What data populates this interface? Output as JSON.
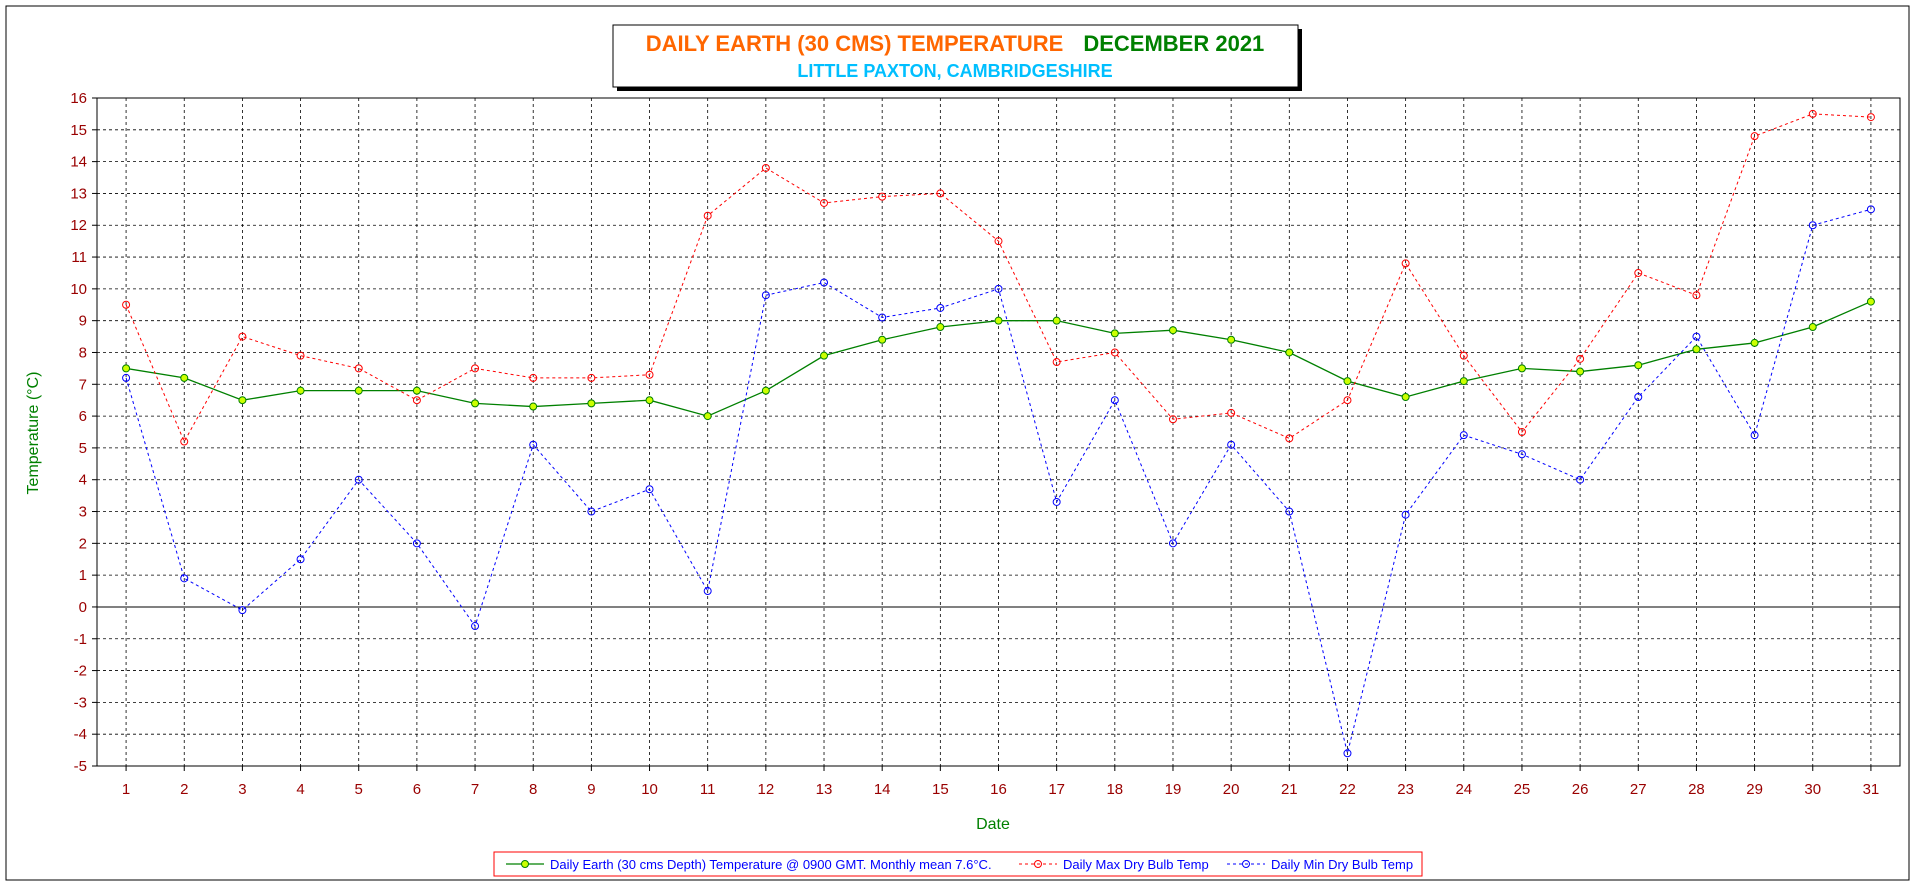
{
  "chart_data": {
    "type": "line",
    "title_part1": "DAILY EARTH (30 CMS) TEMPERATURE",
    "title_part2": "DECEMBER 2021",
    "subtitle": "LITTLE PAXTON, CAMBRIDGESHIRE",
    "xlabel": "Date",
    "ylabel": "Temperature (°C)",
    "ylim": [
      -5,
      16
    ],
    "grid": true,
    "legend_position": "bottom",
    "x": [
      1,
      2,
      3,
      4,
      5,
      6,
      7,
      8,
      9,
      10,
      11,
      12,
      13,
      14,
      15,
      16,
      17,
      18,
      19,
      20,
      21,
      22,
      23,
      24,
      25,
      26,
      27,
      28,
      29,
      30,
      31
    ],
    "series": [
      {
        "name": "Daily Earth (30 cms Depth) Temperature @ 0900 GMT. Monthly mean 7.6°C.",
        "color": "#008000",
        "marker_fill": "#ccff00",
        "style": "solid",
        "values": [
          7.5,
          7.2,
          6.5,
          6.8,
          6.8,
          6.8,
          6.4,
          6.3,
          6.4,
          6.5,
          6.0,
          6.8,
          7.9,
          8.4,
          8.8,
          9.0,
          9.0,
          8.6,
          8.7,
          8.4,
          8.0,
          7.1,
          6.6,
          7.1,
          7.5,
          7.4,
          7.6,
          8.1,
          8.3,
          8.8,
          9.6
        ]
      },
      {
        "name": "Daily Max Dry Bulb Temp",
        "color": "#ff0000",
        "marker_fill": "none",
        "style": "dashed",
        "values": [
          9.5,
          5.2,
          8.5,
          7.9,
          7.5,
          6.5,
          7.5,
          7.2,
          7.2,
          7.3,
          12.3,
          13.8,
          12.7,
          12.9,
          13.0,
          11.5,
          7.7,
          8.0,
          5.9,
          6.1,
          5.3,
          6.5,
          10.8,
          7.9,
          5.5,
          7.8,
          10.5,
          9.8,
          14.8,
          15.5,
          15.4
        ]
      },
      {
        "name": "Daily Min Dry Bulb Temp",
        "color": "#0000ff",
        "marker_fill": "none",
        "style": "dashed",
        "values": [
          7.2,
          0.9,
          -0.1,
          1.5,
          4.0,
          2.0,
          -0.6,
          5.1,
          3.0,
          3.7,
          0.5,
          9.8,
          10.2,
          9.1,
          9.4,
          10.0,
          3.3,
          6.5,
          2.0,
          5.1,
          3.0,
          -4.6,
          2.9,
          5.4,
          4.8,
          4.0,
          6.6,
          8.5,
          5.4,
          12.0,
          12.5
        ]
      }
    ],
    "colors": {
      "title1": "#ff6600",
      "title2": "#008000",
      "subtitle": "#00bfff",
      "tick_labels": "#990000",
      "axis_labels": "#008000",
      "legend_text": "#0000ff",
      "legend_border": "#ff0000"
    }
  }
}
